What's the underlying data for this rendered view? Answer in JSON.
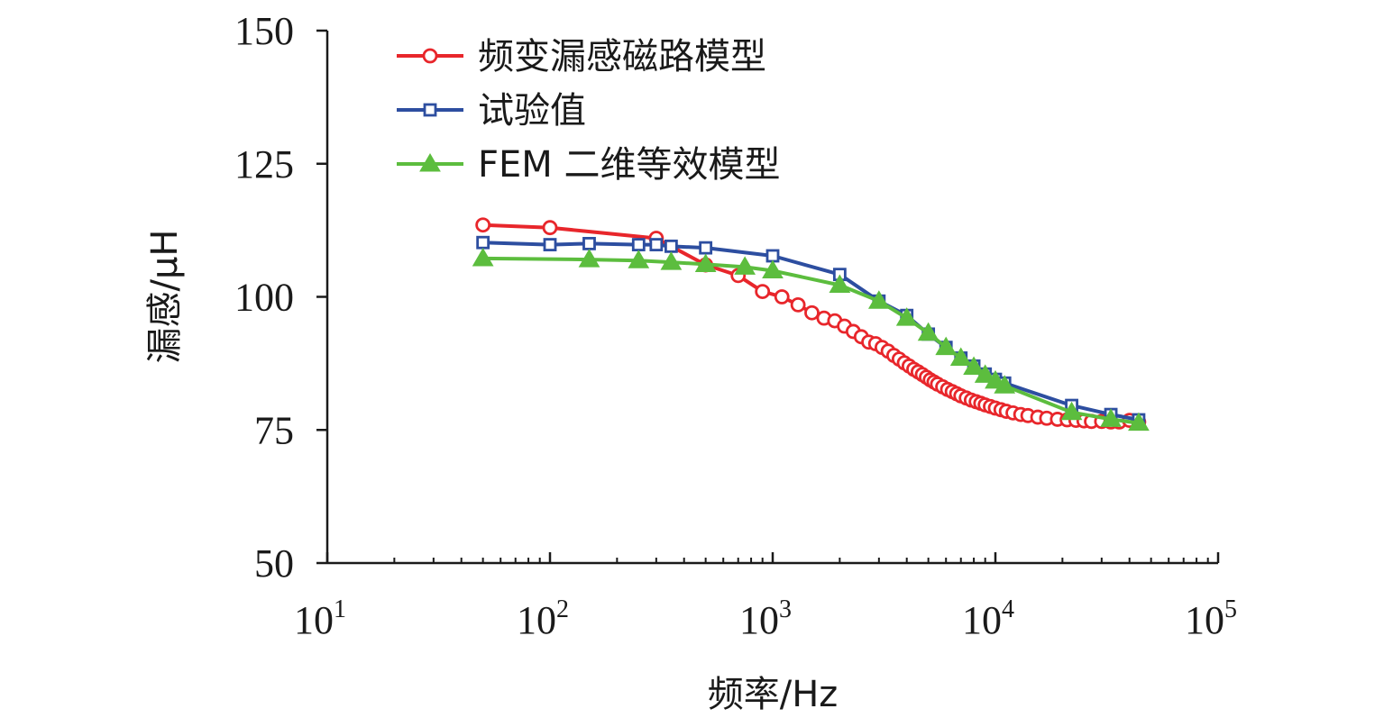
{
  "chart_data": {
    "type": "line",
    "xscale": "log",
    "xlabel": "频率/Hz",
    "ylabel": "漏感/μH",
    "xlim": [
      10,
      100000
    ],
    "ylim": [
      50,
      150
    ],
    "x_ticks": [
      {
        "value": 10,
        "base": "10",
        "exp": "1"
      },
      {
        "value": 100,
        "base": "10",
        "exp": "2"
      },
      {
        "value": 1000,
        "base": "10",
        "exp": "3"
      },
      {
        "value": 10000,
        "base": "10",
        "exp": "4"
      },
      {
        "value": 100000,
        "base": "10",
        "exp": "5"
      }
    ],
    "y_ticks": [
      50,
      75,
      100,
      125,
      150
    ],
    "legend_position": "top-left",
    "series": [
      {
        "name": "频变漏感磁路模型",
        "color": "#e8262b",
        "marker": "circle",
        "points": [
          [
            50,
            113.5
          ],
          [
            100,
            113
          ],
          [
            300,
            111
          ],
          [
            500,
            106
          ],
          [
            700,
            104
          ],
          [
            900,
            101
          ],
          [
            1100,
            100
          ],
          [
            1300,
            98.5
          ],
          [
            1500,
            97
          ],
          [
            1700,
            96
          ],
          [
            1900,
            95.5
          ],
          [
            2100,
            94.5
          ],
          [
            2300,
            93.5
          ],
          [
            2500,
            92.5
          ],
          [
            2700,
            91.5
          ],
          [
            2900,
            91.2
          ],
          [
            3100,
            90.5
          ],
          [
            3300,
            89.8
          ],
          [
            3500,
            89
          ],
          [
            3700,
            88.3
          ],
          [
            3900,
            87.6
          ],
          [
            4100,
            87
          ],
          [
            4300,
            86.4
          ],
          [
            4500,
            85.9
          ],
          [
            4700,
            85.4
          ],
          [
            4900,
            84.9
          ],
          [
            5100,
            84.4
          ],
          [
            5300,
            84
          ],
          [
            5500,
            83.6
          ],
          [
            5800,
            83.1
          ],
          [
            6100,
            82.6
          ],
          [
            6400,
            82.2
          ],
          [
            6700,
            81.8
          ],
          [
            7000,
            81.4
          ],
          [
            7400,
            81
          ],
          [
            7800,
            80.6
          ],
          [
            8200,
            80.3
          ],
          [
            8600,
            80
          ],
          [
            9000,
            79.7
          ],
          [
            9500,
            79.4
          ],
          [
            10000,
            79.1
          ],
          [
            10600,
            78.8
          ],
          [
            11200,
            78.5
          ],
          [
            12000,
            78.2
          ],
          [
            13000,
            77.9
          ],
          [
            14000,
            77.7
          ],
          [
            15500,
            77.4
          ],
          [
            17000,
            77.2
          ],
          [
            19000,
            77
          ],
          [
            21000,
            76.9
          ],
          [
            23000,
            76.8
          ],
          [
            25000,
            76.7
          ],
          [
            27000,
            76.6
          ],
          [
            30000,
            76.6
          ],
          [
            33000,
            76.5
          ],
          [
            36000,
            76.5
          ],
          [
            40000,
            76.8
          ],
          [
            44000,
            76.5
          ]
        ]
      },
      {
        "name": "试验值",
        "color": "#2d4ea0",
        "marker": "square",
        "points": [
          [
            50,
            110.2
          ],
          [
            100,
            109.8
          ],
          [
            150,
            110
          ],
          [
            250,
            109.8
          ],
          [
            300,
            109.8
          ],
          [
            350,
            109.5
          ],
          [
            500,
            109.2
          ],
          [
            1000,
            107.7
          ],
          [
            2000,
            104.2
          ],
          [
            3000,
            99.2
          ],
          [
            4000,
            96.5
          ],
          [
            5000,
            93
          ],
          [
            6000,
            90.5
          ],
          [
            7000,
            88.5
          ],
          [
            8000,
            87
          ],
          [
            9000,
            85.5
          ],
          [
            10000,
            84.5
          ],
          [
            11000,
            83.8
          ],
          [
            22000,
            79.6
          ],
          [
            33000,
            77.9
          ],
          [
            44000,
            76.9
          ]
        ]
      },
      {
        "name": "FEM 二维等效模型",
        "color": "#5cbd3e",
        "marker": "triangle",
        "points": [
          [
            50,
            107.2
          ],
          [
            150,
            107
          ],
          [
            250,
            106.8
          ],
          [
            350,
            106.5
          ],
          [
            500,
            106.1
          ],
          [
            750,
            105.6
          ],
          [
            1000,
            104.9
          ],
          [
            2000,
            102.2
          ],
          [
            3000,
            99.2
          ],
          [
            4000,
            96
          ],
          [
            5000,
            93.2
          ],
          [
            6000,
            90.5
          ],
          [
            7000,
            88.5
          ],
          [
            8000,
            86.8
          ],
          [
            9000,
            85.3
          ],
          [
            10000,
            84.2
          ],
          [
            11000,
            83.3
          ],
          [
            22000,
            78.3
          ],
          [
            33000,
            77
          ],
          [
            44000,
            76.3
          ]
        ]
      }
    ]
  }
}
